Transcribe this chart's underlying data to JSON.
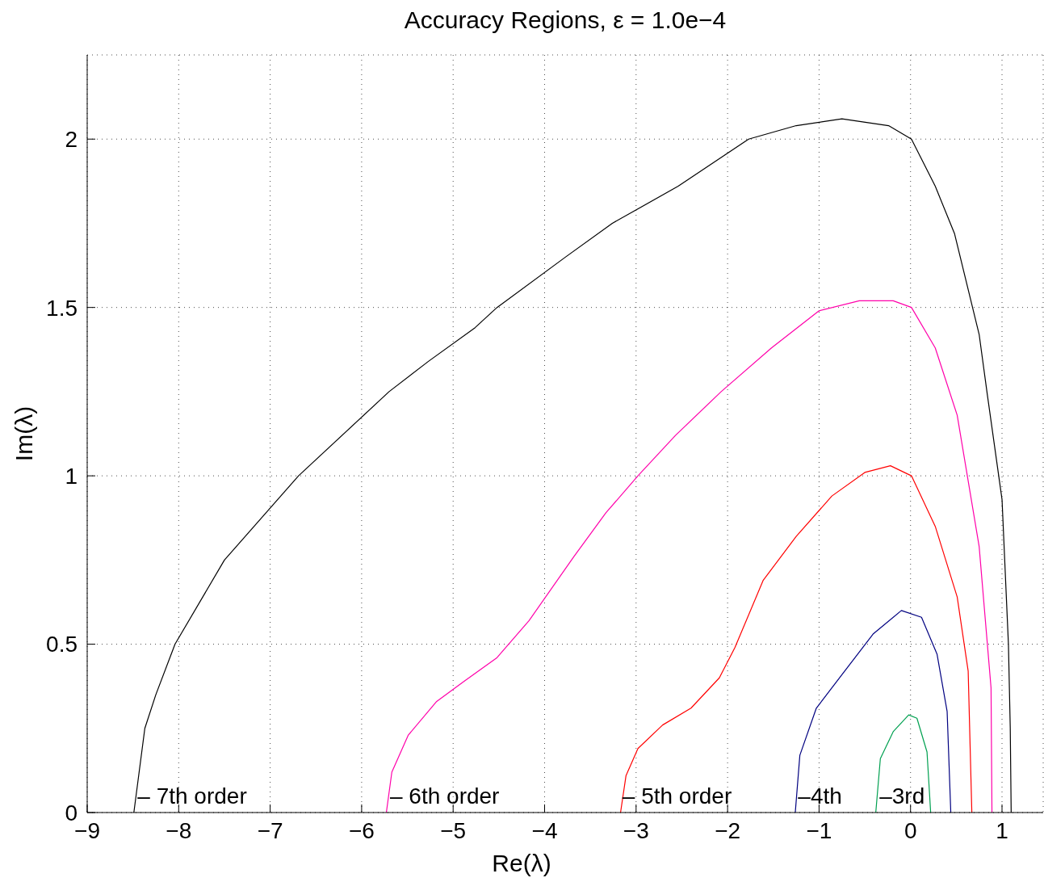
{
  "chart_data": {
    "type": "line",
    "title": "Accuracy Regions, ε = 1.0e−4",
    "xlabel": "Re(λ)",
    "ylabel": "Im(λ)",
    "xlim": [
      -9,
      1.45
    ],
    "ylim": [
      0,
      2.25
    ],
    "xticks": [
      -9,
      -8,
      -7,
      -6,
      -5,
      -4,
      -3,
      -2,
      -1,
      0,
      1
    ],
    "yticks": [
      0,
      0.5,
      1,
      1.5,
      2
    ],
    "grid": true,
    "series": [
      {
        "color": "#000000",
        "x": [
          -8.49,
          -8.37,
          -8.25,
          -8.04,
          -7.5,
          -6.69,
          -5.7,
          -5.27,
          -4.76,
          -4.52,
          -3.77,
          -3.26,
          -2.54,
          -1.77,
          -1.25,
          -0.75,
          -0.24,
          0.01,
          0.27,
          0.48,
          0.75,
          0.84,
          1.0,
          1.07,
          1.09,
          1.1
        ],
        "values": [
          0,
          0.25,
          0.35,
          0.5,
          0.75,
          1.0,
          1.25,
          1.34,
          1.44,
          1.5,
          1.65,
          1.75,
          1.86,
          2.0,
          2.04,
          2.06,
          2.04,
          2.0,
          1.86,
          1.72,
          1.42,
          1.24,
          0.93,
          0.5,
          0.25,
          0
        ]
      },
      {
        "color": "#ff00aa",
        "x": [
          -5.73,
          -5.67,
          -5.49,
          -5.18,
          -4.88,
          -4.52,
          -4.17,
          -3.68,
          -3.33,
          -2.98,
          -2.57,
          -2.07,
          -1.52,
          -1.0,
          -0.56,
          -0.19,
          0.01,
          0.27,
          0.51,
          0.75,
          0.88,
          0.89
        ],
        "values": [
          0,
          0.12,
          0.23,
          0.33,
          0.39,
          0.46,
          0.57,
          0.76,
          0.89,
          1.0,
          1.12,
          1.25,
          1.38,
          1.49,
          1.52,
          1.52,
          1.5,
          1.38,
          1.18,
          0.79,
          0.37,
          0
        ]
      },
      {
        "color": "#ff0000",
        "x": [
          -3.17,
          -3.11,
          -2.98,
          -2.71,
          -2.4,
          -2.09,
          -1.92,
          -1.61,
          -1.25,
          -0.86,
          -0.5,
          -0.22,
          0.01,
          0.27,
          0.51,
          0.63,
          0.67
        ],
        "values": [
          0,
          0.11,
          0.19,
          0.26,
          0.31,
          0.4,
          0.49,
          0.69,
          0.82,
          0.94,
          1.01,
          1.03,
          1.0,
          0.85,
          0.64,
          0.42,
          0
        ]
      },
      {
        "color": "#000080",
        "x": [
          -1.26,
          -1.21,
          -1.03,
          -0.72,
          -0.41,
          -0.1,
          0.12,
          0.29,
          0.4,
          0.44
        ],
        "values": [
          0,
          0.17,
          0.31,
          0.42,
          0.53,
          0.6,
          0.58,
          0.47,
          0.3,
          0
        ]
      },
      {
        "color": "#00a050",
        "x": [
          -0.38,
          -0.33,
          -0.19,
          -0.02,
          0.07,
          0.18,
          0.22
        ],
        "values": [
          0,
          0.16,
          0.24,
          0.29,
          0.28,
          0.18,
          0
        ]
      }
    ],
    "annotations": [
      {
        "text": "– 7th order",
        "x": -8.45,
        "y": 0.05
      },
      {
        "text": "– 6th order",
        "x": -5.69,
        "y": 0.05
      },
      {
        "text": "– 5th order",
        "x": -3.15,
        "y": 0.05
      },
      {
        "text": "–4th",
        "x": -1.23,
        "y": 0.05
      },
      {
        "text": "–3rd",
        "x": -0.34,
        "y": 0.05
      }
    ]
  }
}
